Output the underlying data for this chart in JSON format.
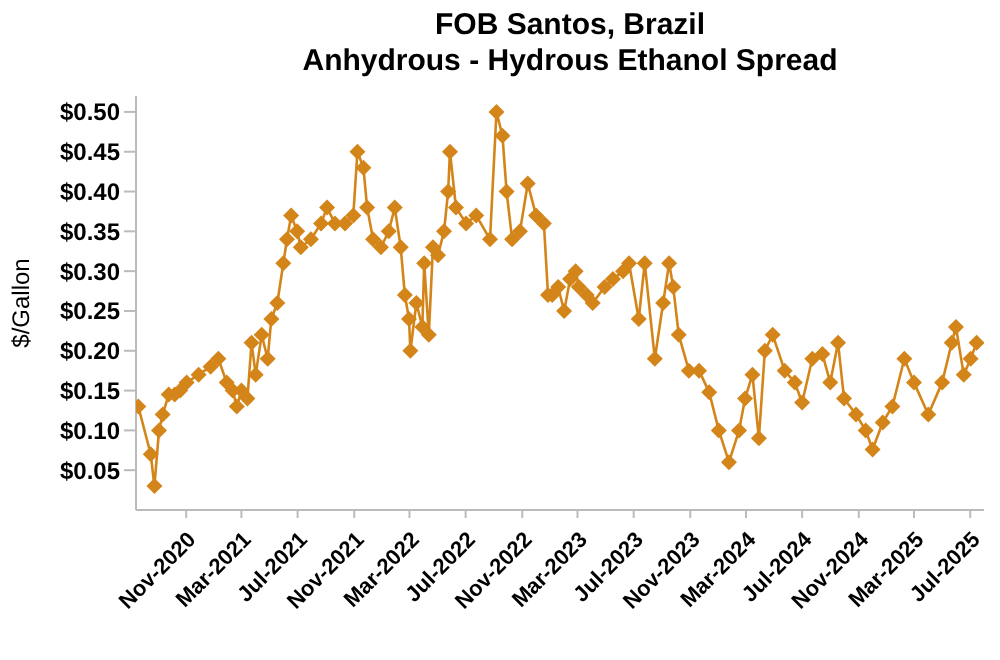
{
  "chart_data": {
    "type": "line",
    "title": "FOB Santos, Brazil",
    "subtitle": "Anhydrous - Hydrous Ethanol Spread",
    "ylabel": "$/Gallon",
    "x": [
      "2020-07-20",
      "2020-08-16",
      "2020-08-24",
      "2020-09-03",
      "2020-09-11",
      "2020-09-24",
      "2020-10-07",
      "2020-10-19",
      "2020-11-02",
      "2020-11-28",
      "2020-12-24",
      "2021-01-10",
      "2021-01-28",
      "2021-02-10",
      "2021-02-19",
      "2021-03-01",
      "2021-03-14",
      "2021-03-23",
      "2021-04-01",
      "2021-04-14",
      "2021-04-27",
      "2021-05-05",
      "2021-05-18",
      "2021-05-31",
      "2021-06-08",
      "2021-06-17",
      "2021-06-30",
      "2021-07-08",
      "2021-07-30",
      "2021-08-21",
      "2021-09-03",
      "2021-09-20",
      "2021-10-12",
      "2021-10-30",
      "2021-11-08",
      "2021-11-21",
      "2021-11-29",
      "2021-12-12",
      "2021-12-29",
      "2022-01-15",
      "2022-01-28",
      "2022-02-10",
      "2022-02-19",
      "2022-02-28",
      "2022-03-03",
      "2022-03-16",
      "2022-03-29",
      "2022-04-02",
      "2022-04-12",
      "2022-04-21",
      "2022-05-02",
      "2022-05-15",
      "2022-05-24",
      "2022-05-28",
      "2022-06-10",
      "2022-07-02",
      "2022-07-24",
      "2022-08-23",
      "2022-09-06",
      "2022-09-19",
      "2022-09-28",
      "2022-10-10",
      "2022-10-27",
      "2022-11-13",
      "2022-12-01",
      "2022-12-18",
      "2022-12-27",
      "2023-01-05",
      "2023-01-18",
      "2023-01-31",
      "2023-02-13",
      "2023-02-25",
      "2023-03-04",
      "2023-03-21",
      "2023-04-03",
      "2023-04-29",
      "2023-05-17",
      "2023-06-08",
      "2023-06-21",
      "2023-07-12",
      "2023-07-25",
      "2023-08-16",
      "2023-09-03",
      "2023-09-16",
      "2023-09-25",
      "2023-10-07",
      "2023-10-29",
      "2023-11-20",
      "2023-12-12",
      "2024-01-02",
      "2024-01-24",
      "2024-02-15",
      "2024-02-28",
      "2024-03-15",
      "2024-03-29",
      "2024-04-11",
      "2024-04-28",
      "2024-05-24",
      "2024-06-15",
      "2024-07-01",
      "2024-07-23",
      "2024-08-14",
      "2024-08-31",
      "2024-09-17",
      "2024-09-30",
      "2024-10-26",
      "2024-11-16",
      "2024-12-01",
      "2024-12-23",
      "2025-01-13",
      "2025-02-08",
      "2025-03-01",
      "2025-04-01",
      "2025-05-01",
      "2025-05-22",
      "2025-05-31",
      "2025-06-17",
      "2025-07-02",
      "2025-07-15"
    ],
    "series": [
      {
        "color": "#d4851a",
        "values": [
          0.13,
          0.07,
          0.03,
          0.1,
          0.12,
          0.145,
          0.145,
          0.15,
          0.16,
          0.17,
          0.18,
          0.19,
          0.16,
          0.15,
          0.13,
          0.15,
          0.14,
          0.21,
          0.17,
          0.22,
          0.19,
          0.24,
          0.26,
          0.31,
          0.34,
          0.37,
          0.35,
          0.33,
          0.34,
          0.36,
          0.38,
          0.36,
          0.36,
          0.37,
          0.45,
          0.43,
          0.38,
          0.34,
          0.33,
          0.35,
          0.38,
          0.33,
          0.27,
          0.24,
          0.2,
          0.26,
          0.23,
          0.31,
          0.22,
          0.33,
          0.32,
          0.35,
          0.4,
          0.45,
          0.38,
          0.36,
          0.37,
          0.34,
          0.5,
          0.47,
          0.4,
          0.34,
          0.35,
          0.41,
          0.37,
          0.36,
          0.27,
          0.27,
          0.28,
          0.25,
          0.29,
          0.3,
          0.28,
          0.27,
          0.26,
          0.28,
          0.29,
          0.3,
          0.31,
          0.24,
          0.31,
          0.19,
          0.26,
          0.31,
          0.28,
          0.22,
          0.175,
          0.175,
          0.148,
          0.1,
          0.06,
          0.1,
          0.14,
          0.17,
          0.09,
          0.2,
          0.22,
          0.175,
          0.16,
          0.135,
          0.19,
          0.196,
          0.16,
          0.21,
          0.14,
          0.12,
          0.1,
          0.076,
          0.11,
          0.13,
          0.19,
          0.16,
          0.12,
          0.16,
          0.21,
          0.23,
          0.17,
          0.19,
          0.21
        ]
      }
    ],
    "xlim": [
      "2020-07-15",
      "2025-07-31"
    ],
    "xticks": [
      {
        "value": "2020-11",
        "label": "Nov-2020"
      },
      {
        "value": "2021-03",
        "label": "Mar-2021"
      },
      {
        "value": "2021-07",
        "label": "Jul-2021"
      },
      {
        "value": "2021-11",
        "label": "Nov-2021"
      },
      {
        "value": "2022-03",
        "label": "Mar-2022"
      },
      {
        "value": "2022-07",
        "label": "Jul-2022"
      },
      {
        "value": "2022-11",
        "label": "Nov-2022"
      },
      {
        "value": "2023-03",
        "label": "Mar-2023"
      },
      {
        "value": "2023-07",
        "label": "Jul-2023"
      },
      {
        "value": "2023-11",
        "label": "Nov-2023"
      },
      {
        "value": "2024-03",
        "label": "Mar-2024"
      },
      {
        "value": "2024-07",
        "label": "Jul-2024"
      },
      {
        "value": "2024-11",
        "label": "Nov-2024"
      },
      {
        "value": "2025-03",
        "label": "Mar-2025"
      },
      {
        "value": "2025-07",
        "label": "Jul-2025"
      }
    ],
    "ylim": [
      0,
      0.52
    ],
    "yticks": [
      {
        "value": 0.05,
        "label": "$0.05"
      },
      {
        "value": 0.1,
        "label": "$0.10"
      },
      {
        "value": 0.15,
        "label": "$0.15"
      },
      {
        "value": 0.2,
        "label": "$0.20"
      },
      {
        "value": 0.25,
        "label": "$0.25"
      },
      {
        "value": 0.3,
        "label": "$0.30"
      },
      {
        "value": 0.35,
        "label": "$0.35"
      },
      {
        "value": 0.4,
        "label": "$0.40"
      },
      {
        "value": 0.45,
        "label": "$0.45"
      },
      {
        "value": 0.5,
        "label": "$0.50"
      }
    ],
    "marker": "diamond",
    "line_style": "solid",
    "grid": false,
    "legend": false
  }
}
